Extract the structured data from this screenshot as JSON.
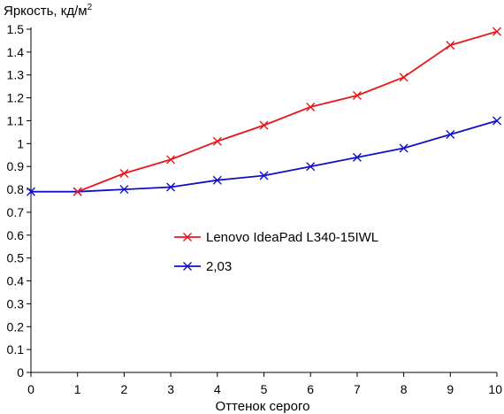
{
  "chart_data": {
    "type": "line",
    "ylabel_main": "Яркость, кд/м",
    "ylabel_sup": "2",
    "xlabel": "Оттенок серого",
    "xlim": [
      0,
      10
    ],
    "ylim": [
      0,
      1.5
    ],
    "x_ticks": [
      "0",
      "1",
      "2",
      "3",
      "4",
      "5",
      "6",
      "7",
      "8",
      "9",
      "10"
    ],
    "y_ticks": [
      "0",
      "0.1",
      "0.2",
      "0.3",
      "0.4",
      "0.5",
      "0.6",
      "0.7",
      "0.8",
      "0.9",
      "1",
      "1.1",
      "1.2",
      "1.3",
      "1.4",
      "1.5"
    ],
    "grid": false,
    "legend_position": "center",
    "series": [
      {
        "name": "Lenovo IdeaPad L340-15IWL",
        "color": "#e8161b",
        "marker": "x",
        "x": [
          1,
          2,
          3,
          4,
          5,
          6,
          7,
          8,
          9,
          10
        ],
        "values": [
          0.79,
          0.87,
          0.93,
          1.01,
          1.08,
          1.16,
          1.21,
          1.29,
          1.43,
          1.49
        ]
      },
      {
        "name": "2,03",
        "color": "#1010c8",
        "marker": "x",
        "x": [
          0,
          1,
          2,
          3,
          4,
          5,
          6,
          7,
          8,
          9,
          10
        ],
        "values": [
          0.79,
          0.79,
          0.8,
          0.81,
          0.84,
          0.86,
          0.9,
          0.94,
          0.98,
          1.04,
          1.1
        ]
      }
    ]
  }
}
